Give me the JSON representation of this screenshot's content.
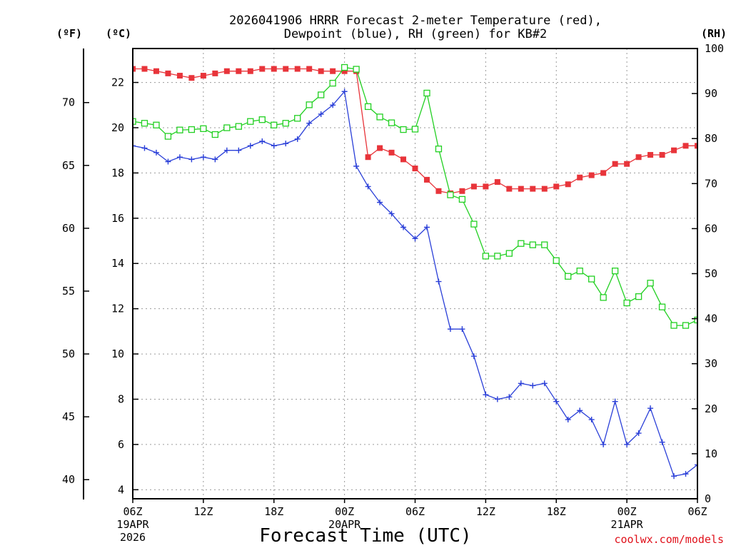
{
  "chart_data": {
    "type": "line",
    "title_line1": "2026041906 HRRR Forecast 2-meter Temperature (red),",
    "title_line2": "Dewpoint (blue), RH (green) for KB#2",
    "units": {
      "fahrenheit": "(ºF)",
      "celsius": "(ºC)",
      "rh": "(RH)"
    },
    "xlabel": "Forecast Time (UTC)",
    "credit": "coolwx.com/models",
    "x_hours": [
      0,
      1,
      2,
      3,
      4,
      5,
      6,
      7,
      8,
      9,
      10,
      11,
      12,
      13,
      14,
      15,
      16,
      17,
      18,
      19,
      20,
      21,
      22,
      23,
      24,
      25,
      26,
      27,
      28,
      29,
      30,
      31,
      32,
      33,
      34,
      35,
      36,
      37,
      38,
      39,
      40,
      41,
      42,
      43,
      44,
      45,
      46,
      47,
      48
    ],
    "xlim": [
      0,
      48
    ],
    "x_ticks": [
      {
        "hour": 0,
        "lines": [
          "06Z",
          "19APR",
          "2026"
        ]
      },
      {
        "hour": 6,
        "lines": [
          "12Z"
        ]
      },
      {
        "hour": 12,
        "lines": [
          "18Z"
        ]
      },
      {
        "hour": 18,
        "lines": [
          "00Z",
          "20APR"
        ]
      },
      {
        "hour": 24,
        "lines": [
          "06Z"
        ]
      },
      {
        "hour": 30,
        "lines": [
          "12Z"
        ]
      },
      {
        "hour": 36,
        "lines": [
          "18Z"
        ]
      },
      {
        "hour": 42,
        "lines": [
          "00Z",
          "21APR"
        ]
      },
      {
        "hour": 48,
        "lines": [
          "06Z"
        ]
      }
    ],
    "celsius_axis": {
      "ylim": [
        3.6,
        23.5
      ],
      "ticks": [
        4,
        6,
        8,
        10,
        12,
        14,
        16,
        18,
        20,
        22
      ]
    },
    "fahrenheit_axis": {
      "ticks": [
        40,
        45,
        50,
        55,
        60,
        65,
        70
      ]
    },
    "rh_axis": {
      "ylim": [
        0,
        100
      ],
      "ticks": [
        0,
        10,
        20,
        30,
        40,
        50,
        60,
        70,
        80,
        90,
        100
      ]
    },
    "grid": true,
    "series": [
      {
        "name": "Temperature",
        "color": "#e8343a",
        "marker": "filled-square",
        "axis": "celsius",
        "values": [
          22.6,
          22.6,
          22.5,
          22.4,
          22.3,
          22.2,
          22.3,
          22.4,
          22.5,
          22.5,
          22.5,
          22.6,
          22.6,
          22.6,
          22.6,
          22.6,
          22.5,
          22.5,
          22.5,
          22.5,
          18.7,
          19.1,
          18.9,
          18.6,
          18.2,
          17.7,
          17.2,
          17.1,
          17.2,
          17.4,
          17.4,
          17.6,
          17.3,
          17.3,
          17.3,
          17.3,
          17.4,
          17.5,
          17.8,
          17.9,
          18.0,
          18.4,
          18.4,
          18.7,
          18.8,
          18.8,
          19.0,
          19.2,
          19.2
        ]
      },
      {
        "name": "Dewpoint",
        "color": "#2a3fd8",
        "marker": "plus",
        "axis": "celsius",
        "values": [
          19.2,
          19.1,
          18.9,
          18.5,
          18.7,
          18.6,
          18.7,
          18.6,
          19.0,
          19.0,
          19.2,
          19.4,
          19.2,
          19.3,
          19.5,
          20.2,
          20.6,
          21.0,
          21.6,
          18.3,
          17.4,
          16.7,
          16.2,
          15.6,
          15.1,
          15.6,
          13.2,
          11.1,
          11.1,
          9.9,
          8.2,
          8.0,
          8.1,
          8.7,
          8.6,
          8.7,
          7.9,
          7.1,
          7.5,
          7.1,
          6.0,
          7.9,
          6.0,
          6.5,
          7.6,
          6.1,
          4.6,
          4.7,
          5.1
        ]
      },
      {
        "name": "RH",
        "color": "#22d022",
        "marker": "open-square",
        "axis": "rh",
        "values": [
          83.8,
          83.4,
          83.0,
          80.5,
          81.9,
          82.0,
          82.2,
          80.9,
          82.4,
          82.7,
          83.8,
          84.2,
          83.0,
          83.4,
          84.5,
          87.5,
          89.7,
          92.3,
          95.8,
          95.4,
          87.1,
          84.8,
          83.5,
          82.0,
          82.1,
          90.1,
          77.7,
          67.5,
          66.5,
          61.0,
          53.9,
          53.9,
          54.5,
          56.7,
          56.4,
          56.4,
          52.9,
          49.4,
          50.6,
          48.8,
          44.7,
          50.6,
          43.5,
          44.9,
          47.9,
          42.6,
          38.5,
          38.5,
          39.7
        ]
      }
    ]
  }
}
